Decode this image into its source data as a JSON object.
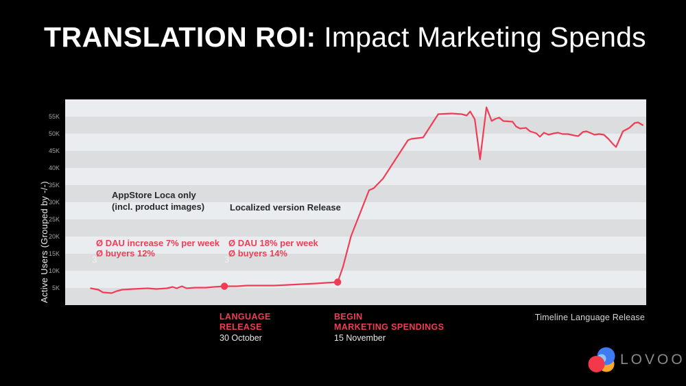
{
  "slide": {
    "title_bold": "TRANSLATION ROI:",
    "title_light": " Impact Marketing Spends"
  },
  "colors": {
    "background": "#000000",
    "accent_pink": "#F13C55",
    "band_light": "#E9EDF0",
    "band_dark": "#DBDDDE",
    "tick_gray": "#A3A3A3",
    "logo_gray": "#8A8A8A",
    "logo_red": "#F2384A",
    "logo_blue": "#3E7BF2",
    "logo_lightblue": "#8CC5F8",
    "logo_orange": "#F9A82B"
  },
  "chart_data": {
    "type": "line",
    "title": "",
    "xlabel": "",
    "ylabel": "Active Users (Grouped by -/-)",
    "y_ticks": [
      "5K",
      "10K",
      "15K",
      "20K",
      "25K",
      "30K",
      "35K",
      "40K",
      "45K",
      "50K",
      "55K"
    ],
    "ylim_k": [
      0,
      60
    ],
    "x_unit": "percent_of_plot_width",
    "grid": "horizontal stripe bands, one per 5K, alternating dark/light from bottom",
    "legend": "none",
    "series": [
      {
        "name": "Active Users",
        "color": "#F13C55",
        "points": [
          [
            4.4,
            4.9
          ],
          [
            5.7,
            4.5
          ],
          [
            6.5,
            3.7
          ],
          [
            8.0,
            3.5
          ],
          [
            8.9,
            4.1
          ],
          [
            9.8,
            4.5
          ],
          [
            11.8,
            4.7
          ],
          [
            14.2,
            4.9
          ],
          [
            15.7,
            4.7
          ],
          [
            17.5,
            4.9
          ],
          [
            18.5,
            5.3
          ],
          [
            19.2,
            4.9
          ],
          [
            20.1,
            5.5
          ],
          [
            20.9,
            4.9
          ],
          [
            22.4,
            5.1
          ],
          [
            24.2,
            5.1
          ],
          [
            25.6,
            5.3
          ],
          [
            27.4,
            5.5
          ],
          [
            29.5,
            5.5
          ],
          [
            31.3,
            5.7
          ],
          [
            33.6,
            5.7
          ],
          [
            36.0,
            5.7
          ],
          [
            38.4,
            5.9
          ],
          [
            40.7,
            6.1
          ],
          [
            43.1,
            6.3
          ],
          [
            44.9,
            6.5
          ],
          [
            46.9,
            6.7
          ],
          [
            47.8,
            11.1
          ],
          [
            49.2,
            20.1
          ],
          [
            52.3,
            33.5
          ],
          [
            53.1,
            34.1
          ],
          [
            54.7,
            36.9
          ],
          [
            59.0,
            48.1
          ],
          [
            59.6,
            48.5
          ],
          [
            61.6,
            48.9
          ],
          [
            64.2,
            55.7
          ],
          [
            66.5,
            55.9
          ],
          [
            68.2,
            55.7
          ],
          [
            69.1,
            55.3
          ],
          [
            69.7,
            56.5
          ],
          [
            70.5,
            54.2
          ],
          [
            71.4,
            42.5
          ],
          [
            72.5,
            57.7
          ],
          [
            73.4,
            53.7
          ],
          [
            74.0,
            54.3
          ],
          [
            74.7,
            54.7
          ],
          [
            75.4,
            53.7
          ],
          [
            77.0,
            53.5
          ],
          [
            77.6,
            52.1
          ],
          [
            78.3,
            51.5
          ],
          [
            79.3,
            51.7
          ],
          [
            80.0,
            50.7
          ],
          [
            81.1,
            50.1
          ],
          [
            81.7,
            49.1
          ],
          [
            82.4,
            50.3
          ],
          [
            83.2,
            49.7
          ],
          [
            84.1,
            50.1
          ],
          [
            84.8,
            50.3
          ],
          [
            85.6,
            49.9
          ],
          [
            86.5,
            49.9
          ],
          [
            87.6,
            49.5
          ],
          [
            88.3,
            49.3
          ],
          [
            89.1,
            50.5
          ],
          [
            89.7,
            50.7
          ],
          [
            90.3,
            50.3
          ],
          [
            91.1,
            49.7
          ],
          [
            91.9,
            49.9
          ],
          [
            92.7,
            49.7
          ],
          [
            93.5,
            48.5
          ],
          [
            94.2,
            47.1
          ],
          [
            94.8,
            46.1
          ],
          [
            96.0,
            50.7
          ],
          [
            97.1,
            51.7
          ],
          [
            98.0,
            53.1
          ],
          [
            98.6,
            53.3
          ],
          [
            99.4,
            52.5
          ]
        ]
      }
    ],
    "markers": [
      {
        "x": 27.4,
        "y": 5.5
      },
      {
        "x": 46.9,
        "y": 6.7
      }
    ]
  },
  "annotations": {
    "phase1": {
      "title_line1": "AppStore Loca only",
      "title_line2": "(incl. product images)",
      "stat_line1": "Ø DAU increase 7% per week",
      "stat_line2": "Ø buyers 12%",
      "footnote": "3"
    },
    "phase2": {
      "title": "Localized version Release",
      "stat_line1": "Ø DAU 18% per week",
      "stat_line2": "Ø buyers 14%",
      "footnote": "3"
    }
  },
  "timeline": {
    "events": [
      {
        "line1": "LANGUAGE",
        "line2": "RELEASE",
        "date": "30 October"
      },
      {
        "line1": "BEGIN",
        "line2": "MARKETING SPENDINGS",
        "date": "15 November"
      }
    ],
    "caption": "Timeline Language Release"
  },
  "footer": {
    "logo_text": "LOVOO"
  }
}
